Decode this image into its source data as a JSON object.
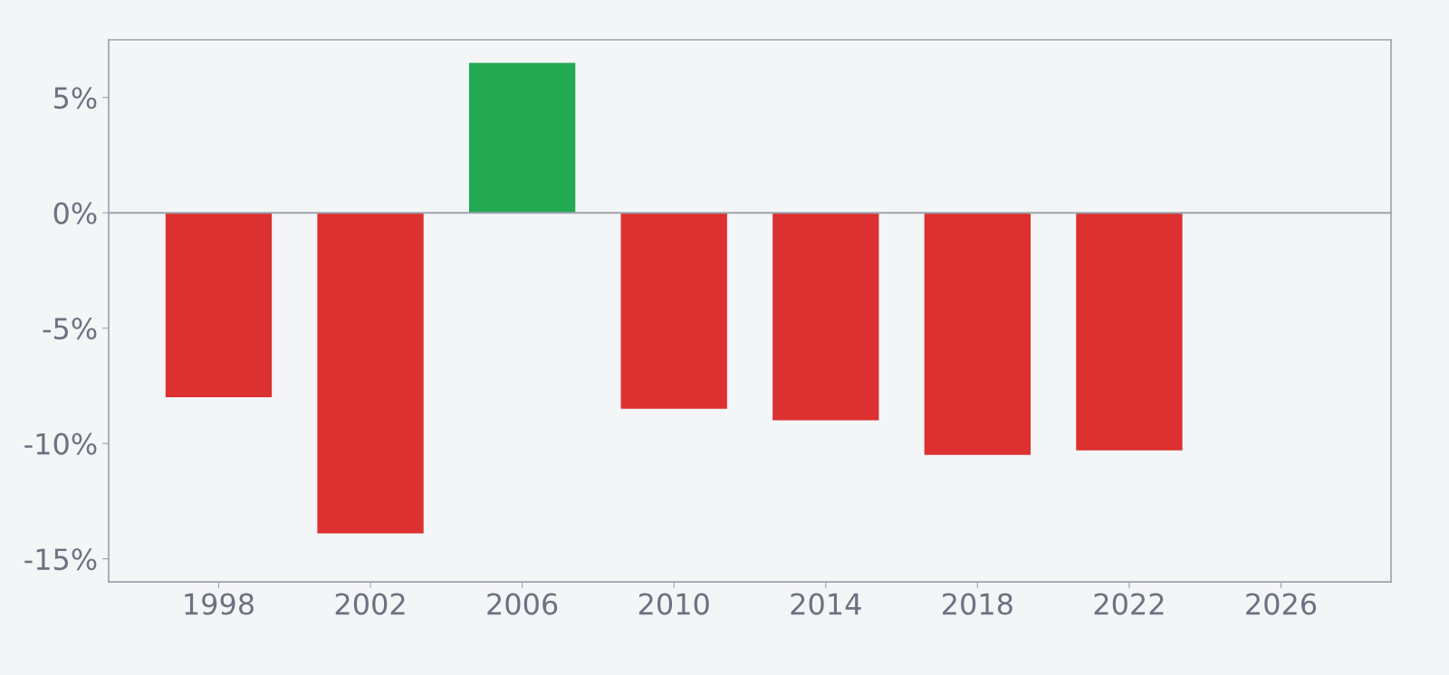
{
  "chart_data": {
    "type": "bar",
    "x": [
      1998,
      2002,
      2006,
      2010,
      2014,
      2018,
      2022
    ],
    "values": [
      -8.0,
      -13.9,
      6.5,
      -8.5,
      -9.0,
      -10.5,
      -10.3
    ],
    "colors": [
      "#dc3031",
      "#dc3031",
      "#22a952",
      "#dc3031",
      "#dc3031",
      "#dc3031",
      "#dc3031"
    ],
    "xlim": [
      1995.1,
      2028.9
    ],
    "xticks": [
      1998,
      2002,
      2006,
      2010,
      2014,
      2018,
      2022,
      2026
    ],
    "ylim": [
      -16.0,
      7.5
    ],
    "yticks": [
      {
        "value": -15,
        "label": "-15%"
      },
      {
        "value": -10,
        "label": "-10%"
      },
      {
        "value": -5,
        "label": "-5%"
      },
      {
        "value": 0,
        "label": "0%"
      },
      {
        "value": 5,
        "label": "5%"
      }
    ],
    "ref_lines": [
      {
        "axis": "y",
        "value": 0,
        "label": null,
        "color": "#9ca3af"
      }
    ],
    "grid": false
  }
}
